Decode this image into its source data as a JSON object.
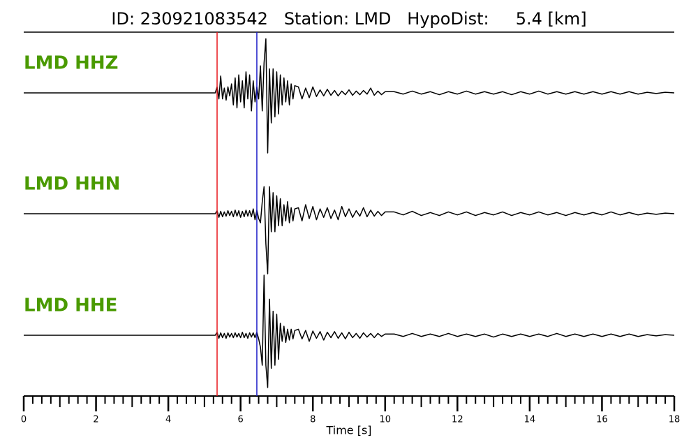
{
  "chart_data": {
    "type": "seismogram",
    "title": "ID: 230921083542   Station: LMD   HypoDist:     5.4 [km]",
    "xlabel": "Time [s]",
    "xlim": [
      0,
      18
    ],
    "xticks": [
      0,
      2,
      4,
      6,
      8,
      10,
      12,
      14,
      16,
      18
    ],
    "xminor_step": 0.25,
    "ylim": [
      -1,
      1
    ],
    "label_color": "#4a9a00",
    "picks": [
      {
        "x": 5.35,
        "color": "#e8161b"
      },
      {
        "x": 6.45,
        "color": "#1c1cc8"
      }
    ],
    "x": [
      0,
      5.3,
      5.35,
      5.4,
      5.45,
      5.5,
      5.55,
      5.6,
      5.65,
      5.7,
      5.75,
      5.8,
      5.85,
      5.9,
      5.95,
      6.0,
      6.05,
      6.1,
      6.15,
      6.2,
      6.25,
      6.3,
      6.35,
      6.4,
      6.45,
      6.5,
      6.55,
      6.6,
      6.65,
      6.7,
      6.75,
      6.8,
      6.85,
      6.9,
      6.95,
      7.0,
      7.05,
      7.1,
      7.15,
      7.2,
      7.25,
      7.3,
      7.35,
      7.4,
      7.45,
      7.5,
      7.6,
      7.7,
      7.8,
      7.9,
      8.0,
      8.1,
      8.2,
      8.3,
      8.4,
      8.5,
      8.6,
      8.7,
      8.8,
      8.9,
      9.0,
      9.1,
      9.2,
      9.3,
      9.4,
      9.5,
      9.6,
      9.7,
      9.8,
      9.9,
      10.0,
      10.25,
      10.5,
      10.75,
      11.0,
      11.25,
      11.5,
      11.75,
      12.0,
      12.25,
      12.5,
      12.75,
      13.0,
      13.25,
      13.5,
      13.75,
      14.0,
      14.25,
      14.5,
      14.75,
      15.0,
      15.25,
      15.5,
      15.75,
      16.0,
      16.25,
      16.5,
      16.75,
      17.0,
      17.25,
      17.5,
      17.75,
      18.0
    ],
    "series": [
      {
        "name": "LMD HHZ",
        "color": "#000000",
        "values": [
          0,
          0,
          0.1,
          -0.1,
          0.28,
          -0.1,
          0.08,
          -0.12,
          0.1,
          -0.05,
          0.15,
          -0.2,
          0.25,
          -0.25,
          0.3,
          -0.15,
          0.2,
          -0.25,
          0.35,
          -0.1,
          0.3,
          -0.3,
          0.2,
          -0.15,
          0.1,
          -0.1,
          0.45,
          -0.3,
          0.5,
          0.9,
          -1.0,
          0.4,
          -0.5,
          0.4,
          -0.4,
          0.35,
          -0.35,
          0.3,
          -0.2,
          0.25,
          -0.15,
          0.2,
          -0.2,
          0.15,
          -0.1,
          0.12,
          0.1,
          -0.1,
          0.08,
          -0.08,
          0.1,
          -0.06,
          0.05,
          -0.05,
          0.06,
          -0.04,
          0.04,
          -0.05,
          0.03,
          -0.03,
          0.05,
          -0.04,
          0.03,
          -0.03,
          0.04,
          -0.02,
          0.08,
          -0.04,
          0.03,
          -0.03,
          0.02,
          0.02,
          -0.02,
          0.03,
          -0.02,
          0.02,
          -0.03,
          0.02,
          -0.02,
          0.03,
          -0.02,
          0.02,
          -0.02,
          0.02,
          -0.03,
          0.02,
          -0.02,
          0.03,
          -0.02,
          0.02,
          -0.02,
          0.02,
          -0.02,
          0.02,
          -0.02,
          0.02,
          -0.02,
          0.02,
          -0.02,
          0.01,
          -0.01,
          0.01,
          0
        ]
      },
      {
        "name": "LMD HHN",
        "color": "#000000",
        "values": [
          0,
          0,
          0.05,
          -0.06,
          0.04,
          -0.05,
          0.03,
          -0.04,
          0.05,
          -0.03,
          0.04,
          -0.05,
          0.06,
          -0.04,
          0.05,
          -0.06,
          0.04,
          -0.05,
          0.06,
          -0.04,
          0.05,
          -0.05,
          0.08,
          -0.1,
          0.06,
          -0.08,
          -0.15,
          0.2,
          0.45,
          -0.5,
          -1.0,
          0.45,
          -0.3,
          0.35,
          -0.3,
          0.3,
          -0.2,
          0.25,
          -0.2,
          0.15,
          -0.12,
          0.2,
          -0.15,
          0.1,
          -0.12,
          0.08,
          0.1,
          -0.12,
          0.15,
          -0.08,
          0.12,
          -0.1,
          0.08,
          -0.06,
          0.1,
          -0.08,
          0.06,
          -0.1,
          0.12,
          -0.05,
          0.08,
          -0.06,
          0.05,
          -0.04,
          0.1,
          -0.05,
          0.06,
          -0.04,
          0.04,
          -0.03,
          0.03,
          0.03,
          -0.02,
          0.04,
          -0.03,
          0.02,
          -0.03,
          0.03,
          -0.02,
          0.03,
          -0.03,
          0.02,
          -0.02,
          0.03,
          -0.03,
          0.02,
          -0.02,
          0.03,
          -0.02,
          0.02,
          -0.03,
          0.02,
          -0.02,
          0.02,
          -0.02,
          0.03,
          -0.02,
          0.02,
          -0.02,
          0.01,
          -0.01,
          0.01,
          0
        ]
      },
      {
        "name": "LMD HHE",
        "color": "#000000",
        "values": [
          0,
          0,
          0.05,
          -0.05,
          0.04,
          -0.04,
          0.03,
          -0.05,
          0.04,
          -0.03,
          0.03,
          -0.04,
          0.04,
          -0.03,
          0.03,
          -0.04,
          0.05,
          -0.04,
          0.03,
          -0.05,
          0.04,
          -0.03,
          0.04,
          -0.04,
          0.05,
          -0.06,
          -0.2,
          -0.5,
          1.0,
          -0.5,
          -0.87,
          0.6,
          -0.55,
          0.4,
          -0.5,
          0.35,
          -0.4,
          0.2,
          -0.1,
          0.15,
          -0.12,
          0.1,
          -0.08,
          0.1,
          -0.06,
          0.08,
          0.1,
          -0.06,
          0.08,
          -0.1,
          0.07,
          -0.05,
          0.06,
          -0.08,
          0.05,
          -0.04,
          0.06,
          -0.05,
          0.04,
          -0.06,
          0.05,
          -0.04,
          0.03,
          -0.05,
          0.04,
          -0.03,
          0.03,
          -0.04,
          0.03,
          -0.02,
          0.02,
          0.02,
          -0.02,
          0.03,
          -0.02,
          0.02,
          -0.02,
          0.03,
          -0.02,
          0.02,
          -0.02,
          0.02,
          -0.03,
          0.02,
          -0.02,
          0.02,
          -0.02,
          0.02,
          -0.02,
          0.03,
          -0.02,
          0.02,
          -0.02,
          0.02,
          -0.02,
          0.02,
          -0.02,
          0.02,
          -0.02,
          0.01,
          -0.01,
          0.01,
          0
        ]
      }
    ]
  }
}
